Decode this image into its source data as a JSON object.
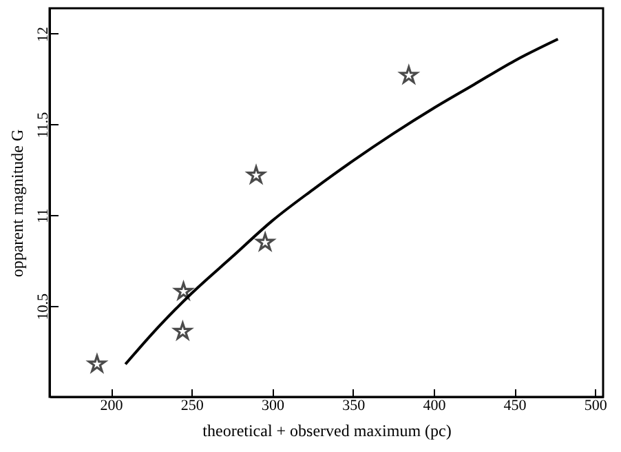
{
  "chart_data": {
    "type": "scatter",
    "xlabel": "theoretical + observed maximum (pc)",
    "ylabel": "opparent magnitude G",
    "xlim": [
      162,
      505
    ],
    "ylim": [
      10,
      12.14
    ],
    "xticks": [
      200,
      250,
      300,
      350,
      400,
      450,
      500
    ],
    "yticks": [
      10.5,
      11,
      11.5,
      12
    ],
    "grid": false,
    "marker": "star",
    "series": [
      {
        "color": "#000000",
        "x": [
          191.4,
          244.5,
          245,
          290,
          295.6,
          384.6
        ],
        "values": [
          10.18,
          10.36,
          10.58,
          11.22,
          10.85,
          11.77
        ]
      },
      {
        "type": "line",
        "color": "#000000",
        "marker": "none",
        "x": [
          209,
          230,
          250,
          275,
          300,
          325,
          350,
          375,
          400,
          425,
          450,
          477
        ],
        "values": [
          10.18,
          10.39,
          10.57,
          10.77,
          10.97,
          11.14,
          11.3,
          11.45,
          11.59,
          11.72,
          11.85,
          11.97
        ]
      }
    ]
  }
}
